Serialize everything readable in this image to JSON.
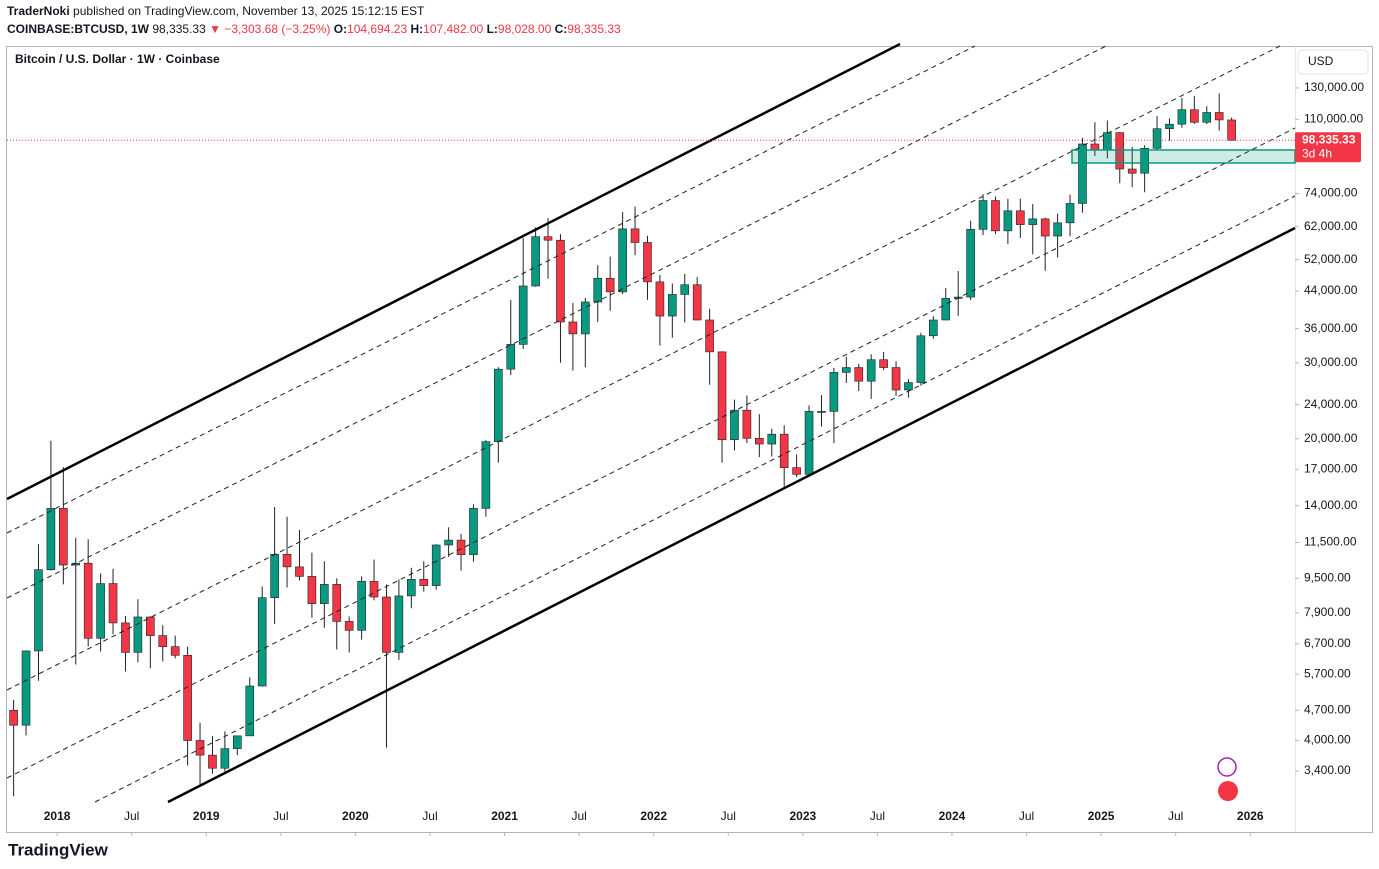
{
  "header": {
    "author": "TraderNoki",
    "published": "published on TradingView.com, November 13, 2025 15:12:15 EST",
    "symbol": "COINBASE:BTCUSD, 1W",
    "price": "98,335.33",
    "change": "▼ −3,303.68 (−3.25%)",
    "o_label": "O:",
    "o": "104,694.23",
    "h_label": "H:",
    "h": "107,482.00",
    "l_label": "L:",
    "l": "98,028.00",
    "c_label": "C:",
    "c": "98,335.33"
  },
  "footer": {
    "logo": "TradingView"
  },
  "chart_data": {
    "type": "candlestick",
    "title": "Bitcoin / U.S. Dollar · 1W · Coinbase",
    "currency": "USD",
    "log_scale": true,
    "up_color": "#089981",
    "down_color": "#f23645",
    "last_price_label": "98,335.33",
    "countdown": "3d 4h",
    "x": [
      "2017-09",
      "2017-10",
      "2017-11",
      "2017-12",
      "2018-01",
      "2018-02",
      "2018-03",
      "2018-04",
      "2018-05",
      "2018-06",
      "2018-07",
      "2018-08",
      "2018-09",
      "2018-10",
      "2018-11",
      "2018-12",
      "2019-01",
      "2019-02",
      "2019-03",
      "2019-04",
      "2019-05",
      "2019-06",
      "2019-07",
      "2019-08",
      "2019-09",
      "2019-10",
      "2019-11",
      "2019-12",
      "2020-01",
      "2020-02",
      "2020-03",
      "2020-04",
      "2020-05",
      "2020-06",
      "2020-07",
      "2020-08",
      "2020-09",
      "2020-10",
      "2020-11",
      "2020-12",
      "2021-01",
      "2021-02",
      "2021-03",
      "2021-04",
      "2021-05",
      "2021-06",
      "2021-07",
      "2021-08",
      "2021-09",
      "2021-10",
      "2021-11",
      "2021-12",
      "2022-01",
      "2022-02",
      "2022-03",
      "2022-04",
      "2022-05",
      "2022-06",
      "2022-07",
      "2022-08",
      "2022-09",
      "2022-10",
      "2022-11",
      "2022-12",
      "2023-01",
      "2023-02",
      "2023-03",
      "2023-04",
      "2023-05",
      "2023-06",
      "2023-07",
      "2023-08",
      "2023-09",
      "2023-10",
      "2023-11",
      "2023-12",
      "2024-01",
      "2024-02",
      "2024-03",
      "2024-04",
      "2024-05",
      "2024-06",
      "2024-07",
      "2024-08",
      "2024-09",
      "2024-10",
      "2024-11",
      "2024-12",
      "2025-01",
      "2025-02",
      "2025-03",
      "2025-04",
      "2025-05",
      "2025-06",
      "2025-07",
      "2025-08",
      "2025-09",
      "2025-10",
      "2025-11"
    ],
    "open": [
      4700,
      4340,
      6450,
      9950,
      13800,
      10200,
      10300,
      6900,
      9240,
      7490,
      6400,
      7730,
      7000,
      6600,
      6300,
      4000,
      3700,
      3450,
      3830,
      4100,
      5350,
      8570,
      10800,
      10100,
      9600,
      8300,
      9200,
      7550,
      7200,
      9350,
      8600,
      6400,
      8650,
      9450,
      9140,
      11350,
      11650,
      10780,
      13800,
      19700,
      29000,
      33100,
      45200,
      58800,
      57700,
      37300,
      35000,
      41500,
      47100,
      43800,
      61300,
      57000,
      46200,
      38500,
      43200,
      45500,
      37700,
      31800,
      19900,
      23300,
      20050,
      19450,
      20500,
      17150,
      16550,
      23150,
      23150,
      28500,
      29250,
      27200,
      30500,
      29250,
      25950,
      27000,
      34650,
      37700,
      42300,
      42600,
      61150,
      71300,
      60650,
      67500,
      62700,
      64650,
      59000,
      63300,
      70200,
      96400,
      93400,
      102400,
      84350,
      82500,
      94200,
      104600,
      107150,
      115750,
      108250,
      114050,
      109600
    ],
    "high": [
      4970,
      6470,
      11400,
      19800,
      17200,
      11800,
      11700,
      9750,
      10000,
      7770,
      8500,
      7760,
      7400,
      7000,
      6600,
      4400,
      4100,
      4200,
      4100,
      5600,
      9100,
      13900,
      13200,
      12300,
      10900,
      10400,
      9500,
      7750,
      9600,
      10500,
      9200,
      9450,
      10050,
      10400,
      11400,
      12470,
      12050,
      14100,
      19850,
      29300,
      41950,
      58350,
      61800,
      64900,
      59600,
      41300,
      42400,
      50500,
      52900,
      67000,
      69000,
      59100,
      47900,
      45800,
      48200,
      47400,
      40000,
      31900,
      24650,
      25200,
      22800,
      21100,
      21500,
      18400,
      23900,
      25250,
      29200,
      31000,
      29850,
      31400,
      31800,
      30250,
      27500,
      35200,
      38450,
      44700,
      48950,
      64000,
      73800,
      72800,
      71950,
      72000,
      70000,
      65100,
      66500,
      73600,
      99600,
      108300,
      109300,
      102750,
      95000,
      95750,
      111900,
      110500,
      123200,
      124450,
      117900,
      126200,
      111000
    ],
    "low": [
      2970,
      4110,
      5500,
      9900,
      9200,
      6000,
      6600,
      6430,
      7050,
      5780,
      6070,
      5880,
      6100,
      6200,
      3500,
      3150,
      3350,
      3390,
      3700,
      4100,
      5330,
      7450,
      9050,
      9400,
      7700,
      7300,
      6500,
      6400,
      6850,
      8450,
      3850,
      6150,
      8100,
      8850,
      8950,
      10650,
      9900,
      10380,
      13200,
      17600,
      28100,
      32300,
      45000,
      47000,
      30000,
      28800,
      29300,
      37300,
      39600,
      43300,
      53300,
      42000,
      32900,
      34300,
      37200,
      37600,
      26700,
      17600,
      18800,
      19550,
      18150,
      18200,
      15500,
      16300,
      16500,
      21350,
      19550,
      26950,
      25800,
      24750,
      28850,
      25150,
      24900,
      26550,
      34100,
      37650,
      38550,
      41900,
      59300,
      59600,
      56550,
      58400,
      53500,
      49000,
      52600,
      58900,
      66800,
      90500,
      89200,
      78200,
      76600,
      74500,
      93400,
      98200,
      105100,
      107300,
      107300,
      103500,
      98000
    ],
    "close": [
      4340,
      6450,
      9950,
      13800,
      10200,
      10300,
      6900,
      9240,
      7490,
      6400,
      7730,
      7000,
      6600,
      6300,
      4000,
      3700,
      3450,
      3830,
      4100,
      5350,
      8570,
      10800,
      10100,
      9600,
      8300,
      9200,
      7550,
      7200,
      9350,
      8600,
      6400,
      8650,
      9450,
      9140,
      11350,
      11650,
      10780,
      13800,
      19700,
      29000,
      33100,
      45200,
      58800,
      57700,
      37300,
      35000,
      41500,
      47100,
      43800,
      61300,
      57000,
      46200,
      38500,
      43200,
      45500,
      37700,
      31800,
      19900,
      23300,
      20050,
      19450,
      20500,
      17150,
      16550,
      23150,
      23150,
      28500,
      29250,
      27200,
      30500,
      29250,
      25950,
      27000,
      34650,
      37700,
      42300,
      42600,
      61150,
      71300,
      60650,
      67500,
      62700,
      64650,
      59000,
      63300,
      70200,
      96400,
      93400,
      102400,
      84350,
      82500,
      94200,
      104600,
      107150,
      115750,
      108250,
      114050,
      109600,
      98335.33
    ],
    "ylim": [
      2455,
      162600
    ],
    "yticks": [
      {
        "value": 130000,
        "label": "130,000.00"
      },
      {
        "value": 110000,
        "label": "110,000.00"
      },
      {
        "value": 74000,
        "label": "74,000.00"
      },
      {
        "value": 62000,
        "label": "62,000.00"
      },
      {
        "value": 52000,
        "label": "52,000.00"
      },
      {
        "value": 44000,
        "label": "44,000.00"
      },
      {
        "value": 36000,
        "label": "36,000.00"
      },
      {
        "value": 30000,
        "label": "30,000.00"
      },
      {
        "value": 24000,
        "label": "24,000.00"
      },
      {
        "value": 20000,
        "label": "20,000.00"
      },
      {
        "value": 17000,
        "label": "17,000.00"
      },
      {
        "value": 14000,
        "label": "14,000.00"
      },
      {
        "value": 11500,
        "label": "11,500.00"
      },
      {
        "value": 9500,
        "label": "9,500.00"
      },
      {
        "value": 7900,
        "label": "7,900.00"
      },
      {
        "value": 6700,
        "label": "6,700.00"
      },
      {
        "value": 5700,
        "label": "5,700.00"
      },
      {
        "value": 4700,
        "label": "4,700.00"
      },
      {
        "value": 4000,
        "label": "4,000.00"
      },
      {
        "value": 3400,
        "label": "3,400.00"
      }
    ],
    "xlim": [
      2017.664,
      2026.3
    ],
    "xticks": [
      2018,
      {
        "value": 2018.5,
        "label": "Jul"
      },
      2019,
      {
        "value": 2019.5,
        "label": "Jul"
      },
      2020,
      {
        "value": 2020.5,
        "label": "Jul"
      },
      2021,
      {
        "value": 2021.5,
        "label": "Jul"
      },
      2022,
      {
        "value": 2022.5,
        "label": "Jul"
      },
      2023,
      {
        "value": 2023.5,
        "label": "Jul"
      },
      2024,
      {
        "value": 2024.5,
        "label": "Jul"
      },
      2025,
      {
        "value": 2025.5,
        "label": "Jul"
      },
      2026
    ]
  }
}
